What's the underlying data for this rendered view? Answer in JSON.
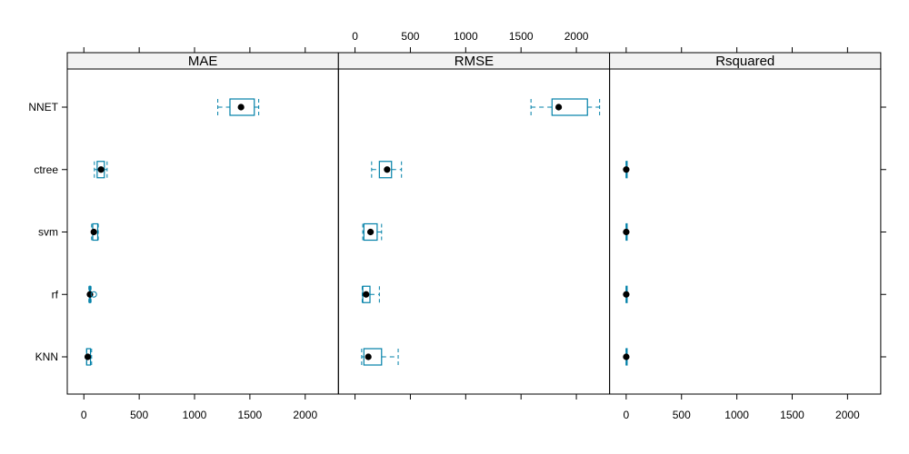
{
  "chart_data": {
    "type": "boxplot",
    "panels": [
      "MAE",
      "RMSE",
      "Rsquared"
    ],
    "categories": [
      "KNN",
      "rf",
      "svm",
      "ctree",
      "NNET"
    ],
    "xlim": [
      -150,
      2300
    ],
    "x_ticks": [
      0,
      500,
      1000,
      1500,
      2000
    ],
    "x_tick_labels": [
      "0",
      "500",
      "1000",
      "1500",
      "2000"
    ],
    "box_color": "#0080A8",
    "point_color": "#000000",
    "strip_color": "#F2F2F2",
    "series": {
      "MAE": [
        {
          "category": "KNN",
          "whisker_low": 25,
          "q1": 25,
          "median": 35,
          "q3": 60,
          "whisker_high": 70,
          "outliers": []
        },
        {
          "category": "rf",
          "whisker_low": 45,
          "q1": 50,
          "median": 55,
          "q3": 60,
          "whisker_high": 65,
          "outliers": [
            90
          ]
        },
        {
          "category": "svm",
          "whisker_low": 70,
          "q1": 80,
          "median": 90,
          "q3": 125,
          "whisker_high": 130,
          "outliers": []
        },
        {
          "category": "ctree",
          "whisker_low": 95,
          "q1": 120,
          "median": 155,
          "q3": 185,
          "whisker_high": 210,
          "outliers": []
        },
        {
          "category": "NNET",
          "whisker_low": 1210,
          "q1": 1320,
          "median": 1420,
          "q3": 1540,
          "whisker_high": 1580,
          "outliers": []
        }
      ],
      "RMSE": [
        {
          "category": "KNN",
          "whisker_low": 60,
          "q1": 80,
          "median": 120,
          "q3": 240,
          "whisker_high": 390,
          "outliers": []
        },
        {
          "category": "rf",
          "whisker_low": 65,
          "q1": 70,
          "median": 100,
          "q3": 135,
          "whisker_high": 220,
          "outliers": []
        },
        {
          "category": "svm",
          "whisker_low": 70,
          "q1": 80,
          "median": 140,
          "q3": 200,
          "whisker_high": 240,
          "outliers": []
        },
        {
          "category": "ctree",
          "whisker_low": 150,
          "q1": 220,
          "median": 290,
          "q3": 330,
          "whisker_high": 420,
          "outliers": []
        },
        {
          "category": "NNET",
          "whisker_low": 1590,
          "q1": 1780,
          "median": 1840,
          "q3": 2100,
          "whisker_high": 2210,
          "outliers": []
        }
      ],
      "Rsquared": [
        {
          "category": "KNN",
          "whisker_low": 0,
          "q1": 0,
          "median": 0.5,
          "q3": 1,
          "whisker_high": 1,
          "outliers": []
        },
        {
          "category": "rf",
          "whisker_low": 0,
          "q1": 0,
          "median": 0.5,
          "q3": 1,
          "whisker_high": 1,
          "outliers": []
        },
        {
          "category": "svm",
          "whisker_low": 0,
          "q1": 0,
          "median": 0.5,
          "q3": 1,
          "whisker_high": 1,
          "outliers": []
        },
        {
          "category": "ctree",
          "whisker_low": 0,
          "q1": 0,
          "median": 0.5,
          "q3": 1,
          "whisker_high": 1,
          "outliers": []
        },
        {
          "category": "NNET",
          "whisker_low": null,
          "q1": null,
          "median": null,
          "q3": null,
          "whisker_high": null,
          "outliers": []
        }
      ]
    }
  }
}
